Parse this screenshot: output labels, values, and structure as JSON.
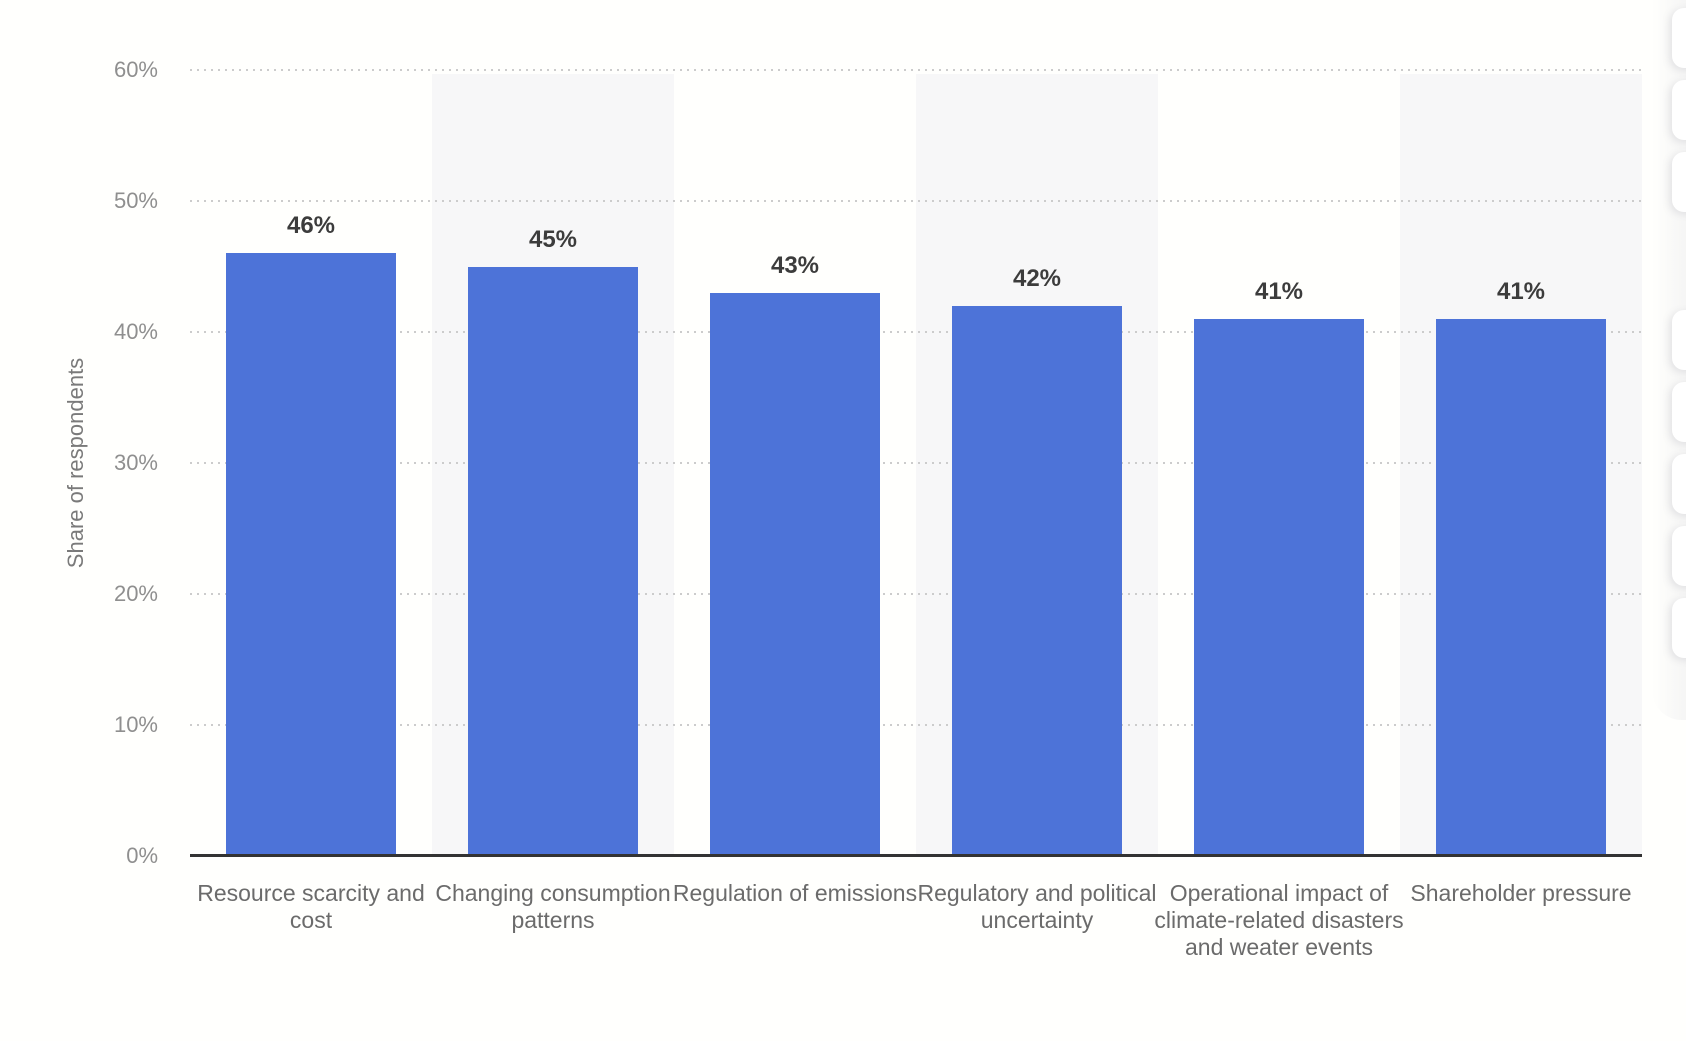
{
  "chart_data": {
    "type": "bar",
    "title": "",
    "categories": [
      "Resource scarcity and cost",
      "Changing consumption patterns",
      "Regulation of emissions",
      "Regulatory and political uncertainty",
      "Operational impact of climate-related disasters and weater events",
      "Shareholder pressure"
    ],
    "values": [
      46,
      45,
      43,
      42,
      41,
      41
    ],
    "value_labels": [
      "46%",
      "45%",
      "43%",
      "42%",
      "41%",
      "41%"
    ],
    "xlabel": "",
    "ylabel": "Share of respondents",
    "ylim": [
      0,
      60
    ],
    "ytick_step": 10,
    "ytick_labels": [
      "0%",
      "10%",
      "20%",
      "30%",
      "40%",
      "50%",
      "60%"
    ],
    "grid": "dotted-horizontal",
    "legend": "none",
    "band_columns": [
      1,
      3,
      5
    ]
  },
  "colors": {
    "bar_fill": "#4d73d8",
    "band_fill": "#f7f7f8",
    "gridline": "#cccccc",
    "axis_line": "#333333",
    "tick_text": "#8f8f8f",
    "category_text": "#6b6b6b",
    "value_text": "#3c3c3c",
    "background": "#fffffd"
  },
  "right_edge_panel": {
    "description": "cut-off stack of rounded buttons peeking from right edge",
    "button_count": 8
  }
}
